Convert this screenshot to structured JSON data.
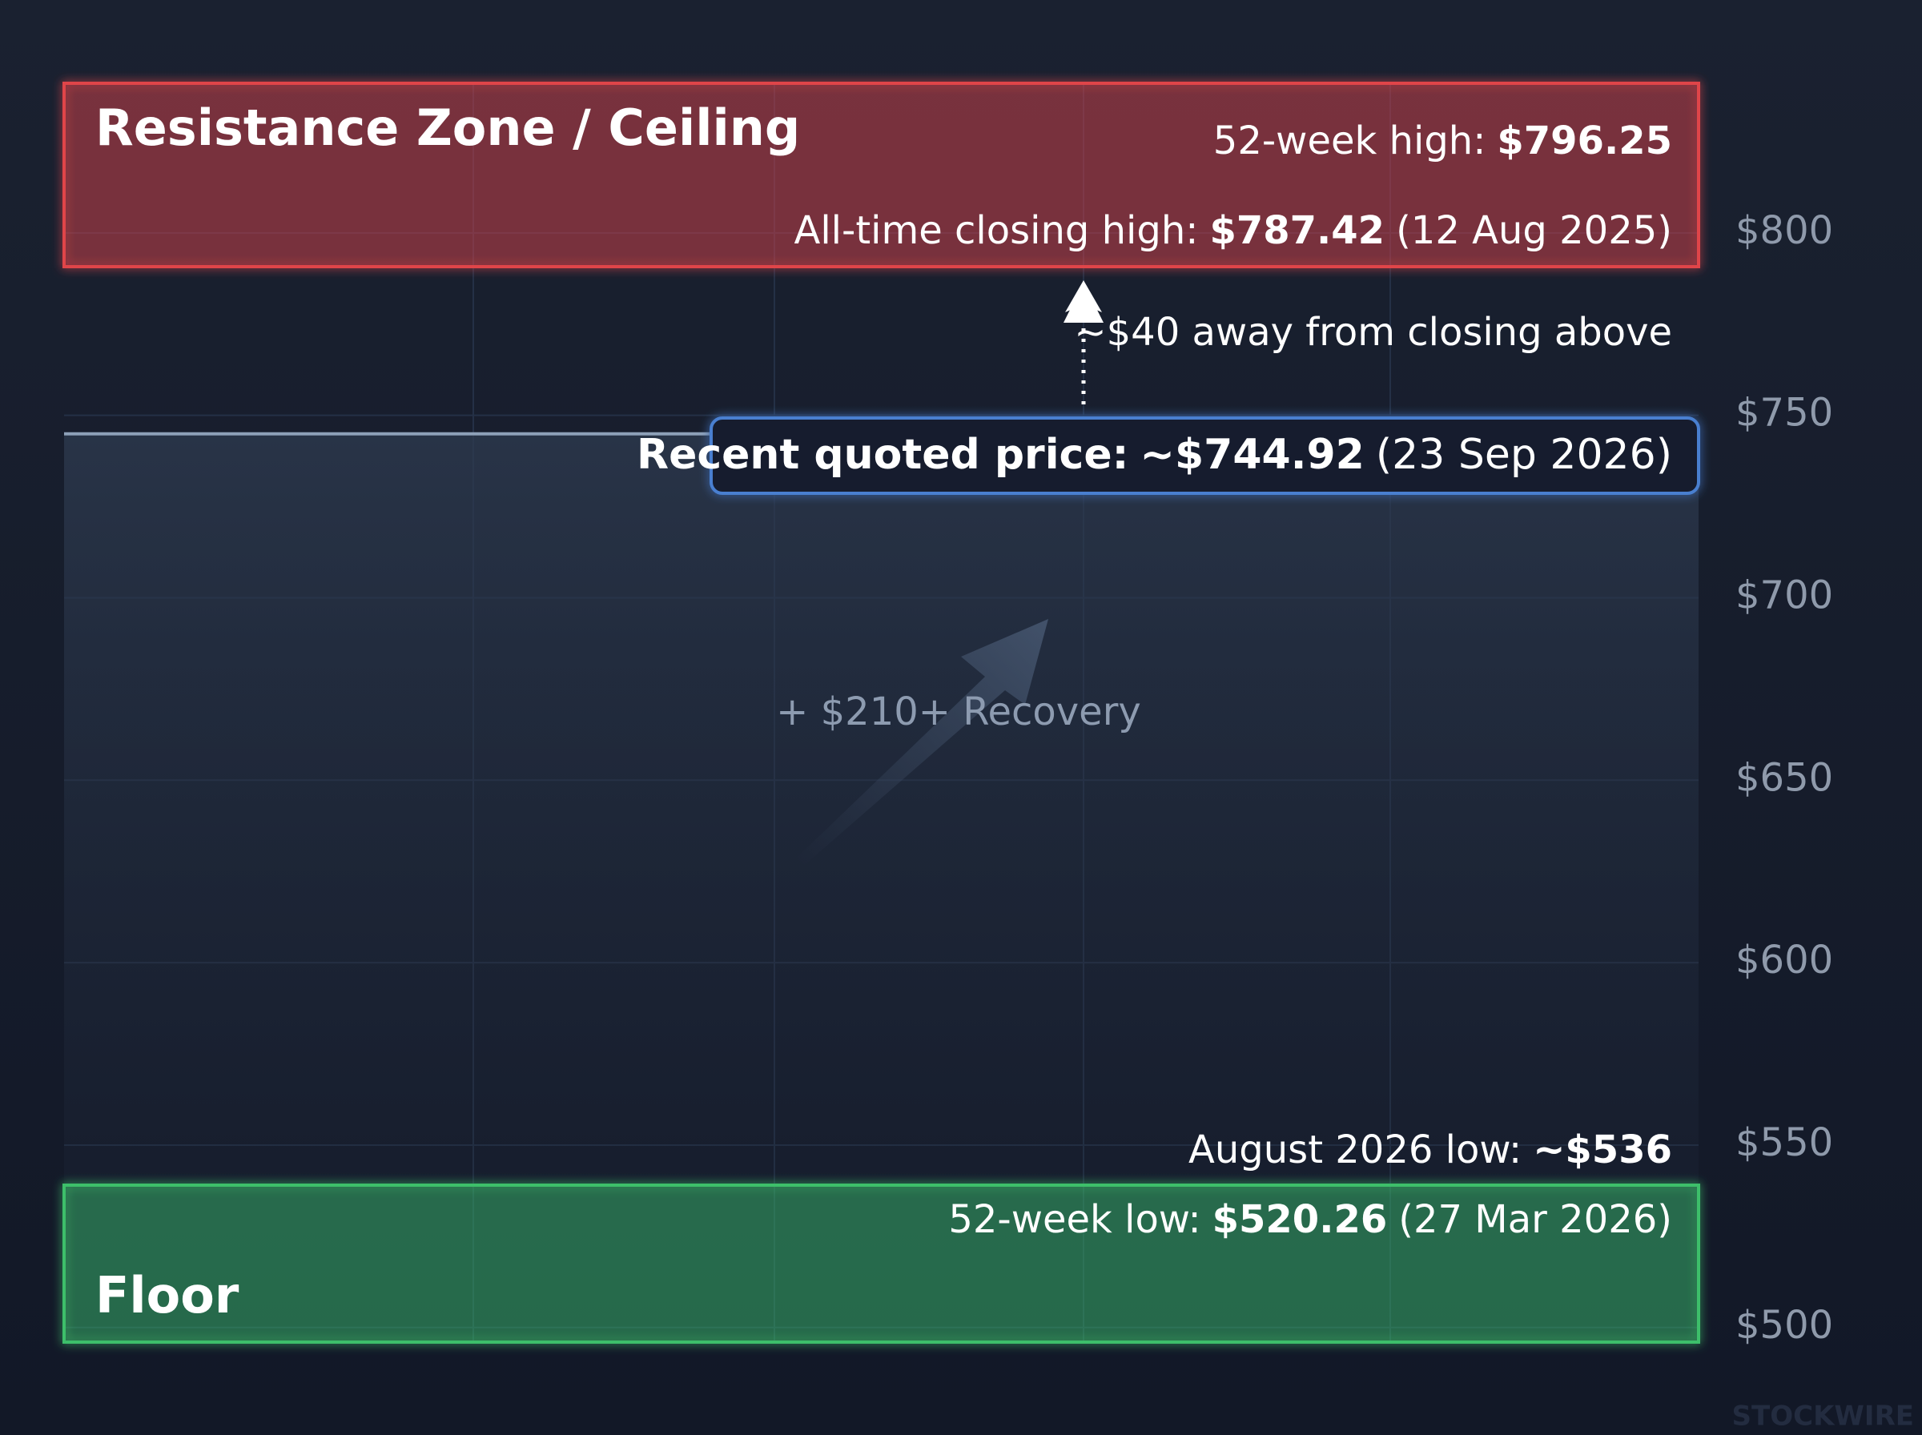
{
  "chart_data": {
    "type": "levels",
    "ylim": [
      496,
      841
    ],
    "yticks": [
      {
        "value": 500,
        "label": "$500"
      },
      {
        "value": 550,
        "label": "$550"
      },
      {
        "value": 600,
        "label": "$600"
      },
      {
        "value": 650,
        "label": "$650"
      },
      {
        "value": 700,
        "label": "$700"
      },
      {
        "value": 750,
        "label": "$750"
      },
      {
        "value": 800,
        "label": "$800"
      }
    ],
    "grid": true,
    "resistance": {
      "title": "Resistance Zone / Ceiling",
      "color": "#e0454a",
      "lines": [
        {
          "label": "52-week high:",
          "value_text": "$796.25"
        },
        {
          "label": "All-time closing high:",
          "value_text": "$787.42",
          "note": "(12 Aug 2025)"
        }
      ]
    },
    "gap_note": "~$40 away from closing above",
    "current": {
      "label": "Recent quoted price:",
      "value_text": "~$744.92",
      "note": "(23 Sep 2026)",
      "value": 744.92,
      "color": "#4a7fd0"
    },
    "recovery": "+ $210+ Recovery",
    "august_low": {
      "label": "August 2026 low:",
      "value_text": "~$536"
    },
    "floor": {
      "title": "Floor",
      "color": "#3cbf6a",
      "lines": [
        {
          "label": "52-week low:",
          "value_text": "$520.26",
          "note": "(27 Mar 2026)"
        }
      ]
    },
    "watermark": "STOCKWIRE"
  }
}
